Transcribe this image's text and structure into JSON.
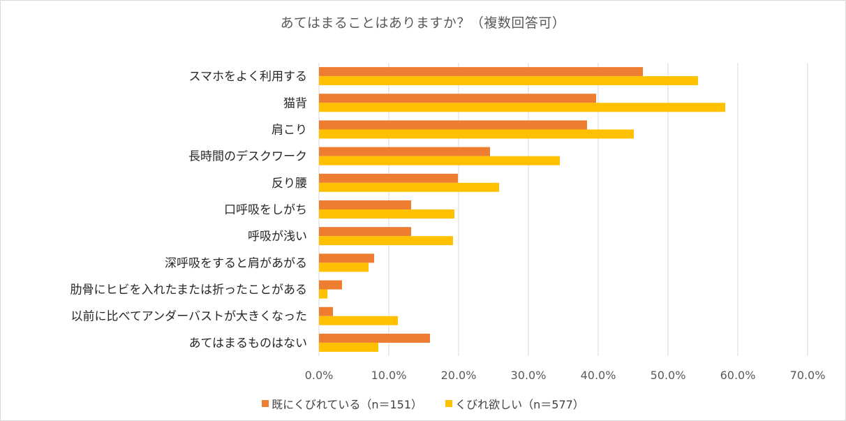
{
  "chart_data": {
    "type": "bar",
    "orientation": "horizontal",
    "title": "あてはまることはありますか？（複数回答可）",
    "categories": [
      "スマホをよく利用する",
      "猫背",
      "肩こり",
      "長時間のデスクワーク",
      "反り腰",
      "口呼吸をしがち",
      "呼吸が浅い",
      "深呼吸をすると肩があがる",
      "肋骨にヒビを入れたまたは折ったことがある",
      "以前に比べてアンダーバストが大きくなった",
      "あてはまるものはない"
    ],
    "series": [
      {
        "name": "既にくびれている（n＝151）",
        "color": "#ED7D31",
        "values": [
          46.4,
          39.7,
          38.4,
          24.5,
          19.9,
          13.2,
          13.2,
          7.9,
          3.3,
          2.0,
          15.9
        ]
      },
      {
        "name": "くびれ欲しい（n＝577）",
        "color": "#FFC000",
        "values": [
          54.3,
          58.2,
          45.1,
          34.5,
          25.8,
          19.4,
          19.2,
          7.1,
          1.2,
          11.3,
          8.5
        ]
      }
    ],
    "xlim": [
      0,
      70
    ],
    "xticks": [
      "0.0%",
      "10.0%",
      "20.0%",
      "30.0%",
      "40.0%",
      "50.0%",
      "60.0%",
      "70.0%"
    ],
    "xlabel": "",
    "ylabel": "",
    "grid": true,
    "legend_position": "bottom"
  }
}
